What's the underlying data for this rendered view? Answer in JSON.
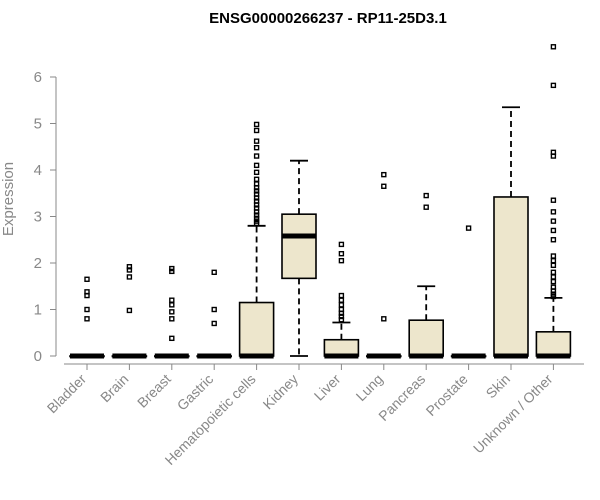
{
  "chart_data": {
    "type": "boxplot",
    "title": "ENSG00000266237 - RP11-25D3.1",
    "ylabel": "Expression",
    "xlabel": "",
    "ylim": [
      0,
      6.5
    ],
    "yticks": [
      0,
      1,
      2,
      3,
      4,
      5,
      6
    ],
    "box_fill": "#ede6cc",
    "axis_color": "#888888",
    "grid": false,
    "categories": [
      "Bladder",
      "Brain",
      "Breast",
      "Gastric",
      "Hematopoietic cells",
      "Kidney",
      "Liver",
      "Lung",
      "Pancreas",
      "Prostate",
      "Skin",
      "Unknown / Other"
    ],
    "boxes": [
      {
        "category": "Bladder",
        "q1": 0,
        "median": 0,
        "q3": 0,
        "whisker_low": 0,
        "whisker_high": 0,
        "outliers": [
          1.65,
          1.38,
          1.3,
          1.0,
          0.8
        ]
      },
      {
        "category": "Brain",
        "q1": 0,
        "median": 0,
        "q3": 0,
        "whisker_low": 0,
        "whisker_high": 0,
        "outliers": [
          1.92,
          1.85,
          1.7,
          0.98
        ]
      },
      {
        "category": "Breast",
        "q1": 0,
        "median": 0,
        "q3": 0,
        "whisker_low": 0,
        "whisker_high": 0,
        "outliers": [
          1.88,
          1.82,
          1.2,
          1.1,
          0.95,
          0.8,
          0.38
        ]
      },
      {
        "category": "Gastric",
        "q1": 0,
        "median": 0,
        "q3": 0,
        "whisker_low": 0,
        "whisker_high": 0,
        "outliers": [
          1.8,
          1.0,
          0.7
        ]
      },
      {
        "category": "Hematopoietic cells",
        "q1": 0,
        "median": 0,
        "q3": 1.15,
        "whisker_low": 0,
        "whisker_high": 2.8,
        "outliers": [
          4.98,
          4.85,
          4.62,
          4.48,
          4.3,
          4.1,
          3.95,
          3.8,
          3.7,
          3.62,
          3.55,
          3.48,
          3.4,
          3.33,
          3.25,
          3.18,
          3.1,
          3.03,
          2.96,
          2.9,
          2.85
        ]
      },
      {
        "category": "Kidney",
        "q1": 1.67,
        "median": 2.58,
        "q3": 3.05,
        "whisker_low": 0,
        "whisker_high": 4.2,
        "outliers": []
      },
      {
        "category": "Liver",
        "q1": 0,
        "median": 0,
        "q3": 0.35,
        "whisker_low": 0,
        "whisker_high": 0.72,
        "outliers": [
          2.4,
          2.2,
          2.05,
          1.3,
          1.2,
          1.1,
          1.0,
          0.92,
          0.85,
          0.78
        ]
      },
      {
        "category": "Lung",
        "q1": 0,
        "median": 0,
        "q3": 0,
        "whisker_low": 0,
        "whisker_high": 0,
        "outliers": [
          3.9,
          3.65,
          0.8
        ]
      },
      {
        "category": "Pancreas",
        "q1": 0,
        "median": 0,
        "q3": 0.77,
        "whisker_low": 0,
        "whisker_high": 1.5,
        "outliers": [
          3.45,
          3.2
        ]
      },
      {
        "category": "Prostate",
        "q1": 0,
        "median": 0,
        "q3": 0,
        "whisker_low": 0,
        "whisker_high": 0,
        "outliers": [
          2.75
        ]
      },
      {
        "category": "Skin",
        "q1": 0,
        "median": 0,
        "q3": 3.42,
        "whisker_low": 0,
        "whisker_high": 5.35,
        "outliers": []
      },
      {
        "category": "Unknown / Other",
        "q1": 0,
        "median": 0,
        "q3": 0.52,
        "whisker_low": 0,
        "whisker_high": 1.25,
        "outliers": [
          6.65,
          5.82,
          4.38,
          4.3,
          3.35,
          3.1,
          2.9,
          2.7,
          2.5,
          2.15,
          2.05,
          1.95,
          1.8,
          1.7,
          1.6,
          1.48,
          1.4,
          1.33,
          1.28
        ]
      }
    ]
  }
}
